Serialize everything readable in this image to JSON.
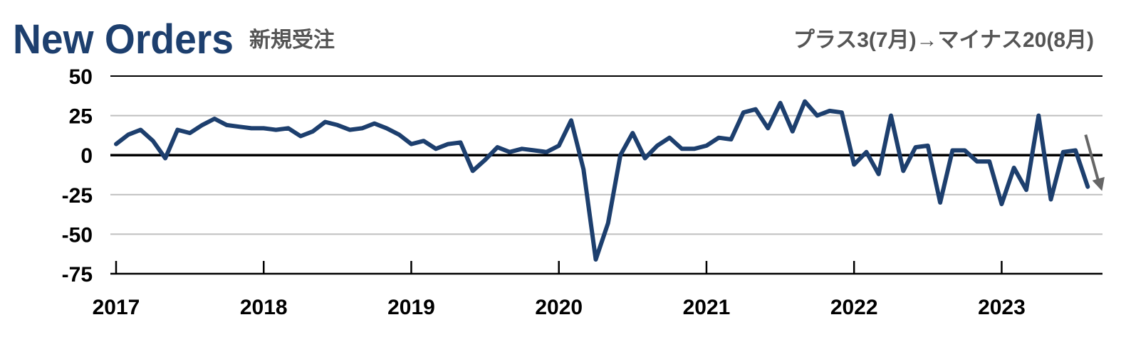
{
  "header": {
    "title": "New Orders",
    "subtitle": "新規受注",
    "annotation": "プラス3(7月)→マイナス20(8月)"
  },
  "colors": {
    "title": "#1d3f6e",
    "series": "#1d3f6e",
    "subtitle": "#555555",
    "annotation": "#555555",
    "grid": "#bfbfbf",
    "zero": "#000000",
    "arrow": "#666666"
  },
  "chart_data": {
    "type": "line",
    "title": "New Orders",
    "subtitle": "新規受注",
    "xlabel": "",
    "ylabel": "",
    "ylim": [
      -75,
      50
    ],
    "yticks": [
      "50",
      "25",
      "0",
      "-25",
      "-50",
      "-75"
    ],
    "year_labels": [
      "2017",
      "2018",
      "2019",
      "2020",
      "2021",
      "2022",
      "2023"
    ],
    "grid": true,
    "start": "2017-01",
    "series": [
      {
        "values": [
          7,
          13,
          16,
          9,
          -2,
          16,
          14,
          19,
          23,
          19,
          18,
          17,
          17,
          16,
          17,
          12,
          15,
          21,
          19,
          16,
          17,
          20,
          17,
          13,
          7,
          9,
          4,
          7,
          8,
          -10,
          -3,
          5,
          2,
          4,
          3,
          2,
          6,
          22,
          -9,
          -66,
          -43,
          0,
          14,
          -2,
          6,
          11,
          4,
          4,
          6,
          11,
          10,
          27,
          29,
          17,
          33,
          15,
          34,
          25,
          28,
          27,
          -6,
          2,
          -12,
          25,
          -10,
          5,
          6,
          -30,
          3,
          3,
          -4,
          -4,
          -31,
          -8,
          -22,
          25,
          -28,
          2,
          3,
          -20
        ]
      }
    ],
    "annotation": {
      "text": "プラス3(7月)→マイナス20(8月)",
      "from": {
        "x": "2023-07",
        "y": 3
      },
      "to": {
        "x": "2023-08",
        "y": -20
      }
    }
  }
}
